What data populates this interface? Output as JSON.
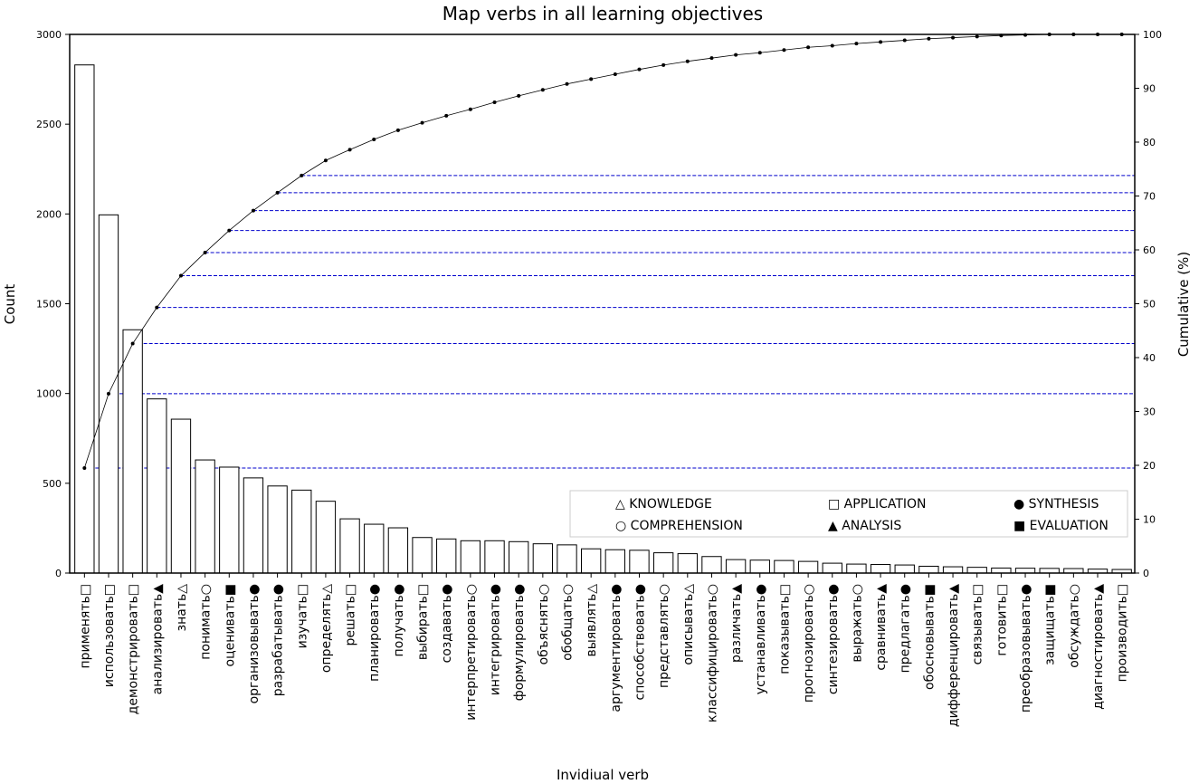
{
  "chart_data": {
    "type": "bar",
    "title": "Map verbs in all learning objectives",
    "xlabel": "Invidiual verb",
    "ylabel": "Count",
    "y2label": "Cumulative (%)",
    "ylim": [
      0,
      3000
    ],
    "y2lim": [
      0,
      100
    ],
    "yticks": [
      "0",
      "500",
      "1000",
      "1500",
      "2000",
      "2500",
      "3000"
    ],
    "y2ticks": [
      "0",
      "10",
      "20",
      "30",
      "40",
      "50",
      "60",
      "70",
      "80",
      "90",
      "100"
    ],
    "categories": [
      "применять□",
      "использовать□",
      "демонстрировать□",
      "анализировать▲",
      "знать△",
      "понимать○",
      "оценивать■",
      "организовывать●",
      "разрабатывать●",
      "изучать□",
      "определять△",
      "решать□",
      "планировать●",
      "получать●",
      "выбирать□",
      "создавать●",
      "интерпретировать○",
      "интегрировать●",
      "формулировать●",
      "объяснять○",
      "обобщать○",
      "выявлять△",
      "аргументировать●",
      "способствовать●",
      "представлять○",
      "описывать△",
      "классифицировать○",
      "различать▲",
      "устанавливать●",
      "показывать□",
      "прогнозировать○",
      "синтезировать●",
      "выражать○",
      "сравнивать▲",
      "предлагать●",
      "обосновывать■",
      "дифференцировать▲",
      "связывать□",
      "готовить□",
      "преобразовывать●",
      "защищать■",
      "обсуждать○",
      "диагностировать▲",
      "производить□"
    ],
    "values": [
      2830,
      1995,
      1355,
      970,
      857,
      630,
      590,
      530,
      485,
      462,
      400,
      302,
      272,
      252,
      198,
      190,
      180,
      180,
      175,
      163,
      157,
      135,
      130,
      127,
      113,
      108,
      92,
      75,
      72,
      70,
      65,
      55,
      50,
      48,
      45,
      38,
      35,
      32,
      28,
      27,
      26,
      25,
      22,
      20
    ],
    "cumulative": [
      19.5,
      33.3,
      42.6,
      49.3,
      55.2,
      59.5,
      63.6,
      67.3,
      70.6,
      73.8,
      76.6,
      78.6,
      80.5,
      82.2,
      83.6,
      84.9,
      86.1,
      87.4,
      88.6,
      89.7,
      90.8,
      91.7,
      92.6,
      93.5,
      94.3,
      95.0,
      95.6,
      96.2,
      96.6,
      97.1,
      97.6,
      97.9,
      98.3,
      98.6,
      98.9,
      99.2,
      99.4,
      99.6,
      99.8,
      99.9,
      100.0,
      100.0,
      100.0,
      100.0
    ],
    "reference_lines_count": 10,
    "legend_position": "lower-right",
    "legend": [
      {
        "symbol": "△",
        "label": "KNOWLEDGE"
      },
      {
        "symbol": "□",
        "label": "APPLICATION"
      },
      {
        "symbol": "●",
        "label": "SYNTHESIS"
      },
      {
        "symbol": "○",
        "label": "COMPREHENSION"
      },
      {
        "symbol": "▲",
        "label": "ANALYSIS"
      },
      {
        "symbol": "■",
        "label": "EVALUATION"
      }
    ],
    "colors": {
      "bar_fill": "#ffffff",
      "bar_stroke": "#000000",
      "line": "#000000",
      "reference_line": "#0000cc"
    }
  }
}
